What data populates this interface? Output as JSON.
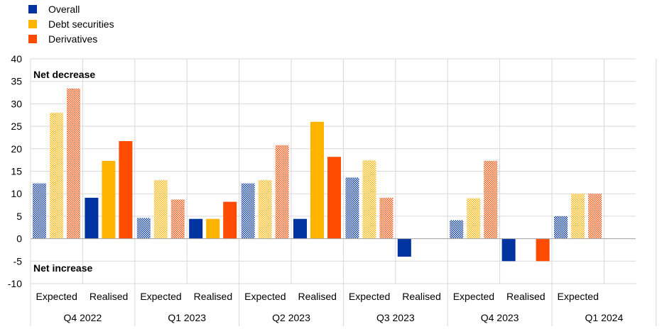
{
  "colors": {
    "overall": "#0033a0",
    "debt": "#ffb400",
    "derivatives": "#ff4b00",
    "grid": "#d9d9d9",
    "text": "#000000"
  },
  "legend": {
    "items": [
      {
        "label": "Overall",
        "color": "#0033a0"
      },
      {
        "label": "Debt securities",
        "color": "#ffb400"
      },
      {
        "label": "Derivatives",
        "color": "#ff4b00"
      }
    ]
  },
  "chart_data": {
    "type": "bar",
    "title": "",
    "xlabel": "",
    "ylabel": "",
    "ylim": [
      -10,
      40
    ],
    "yticks": [
      -10,
      -5,
      0,
      5,
      10,
      15,
      20,
      25,
      30,
      35,
      40
    ],
    "grid": true,
    "legend_position": "top-left",
    "annotations": [
      {
        "text": "Net decrease",
        "y": 36.5
      },
      {
        "text": "Net increase",
        "y": -6.5
      }
    ],
    "groups": [
      "Q4 2022",
      "Q1 2023",
      "Q2 2023",
      "Q3 2023",
      "Q4 2023",
      "Q1 2024"
    ],
    "categories": [
      {
        "label": "Expected",
        "group": "Q4 2022",
        "style": "hatched"
      },
      {
        "label": "Realised",
        "group": "Q4 2022",
        "style": "solid"
      },
      {
        "label": "Expected",
        "group": "Q1 2023",
        "style": "hatched"
      },
      {
        "label": "Realised",
        "group": "Q1 2023",
        "style": "solid"
      },
      {
        "label": "Expected",
        "group": "Q2 2023",
        "style": "hatched"
      },
      {
        "label": "Realised",
        "group": "Q2 2023",
        "style": "solid"
      },
      {
        "label": "Expected",
        "group": "Q3 2023",
        "style": "hatched"
      },
      {
        "label": "Realised",
        "group": "Q3 2023",
        "style": "solid"
      },
      {
        "label": "Expected",
        "group": "Q4 2023",
        "style": "hatched"
      },
      {
        "label": "Realised",
        "group": "Q4 2023",
        "style": "solid"
      },
      {
        "label": "Expected",
        "group": "Q1 2024",
        "style": "hatched"
      }
    ],
    "series": [
      {
        "name": "Overall",
        "values": [
          12.3,
          9.1,
          4.6,
          4.4,
          12.3,
          4.4,
          13.6,
          -4.0,
          4.1,
          -5.0,
          5.0
        ]
      },
      {
        "name": "Debt securities",
        "values": [
          28.0,
          17.3,
          13.0,
          4.4,
          13.0,
          26.0,
          17.4,
          0,
          9.0,
          0,
          10.0
        ]
      },
      {
        "name": "Derivatives",
        "values": [
          33.4,
          21.7,
          8.7,
          8.2,
          20.8,
          18.2,
          9.1,
          0,
          17.3,
          -5.0,
          10.0
        ]
      }
    ]
  }
}
